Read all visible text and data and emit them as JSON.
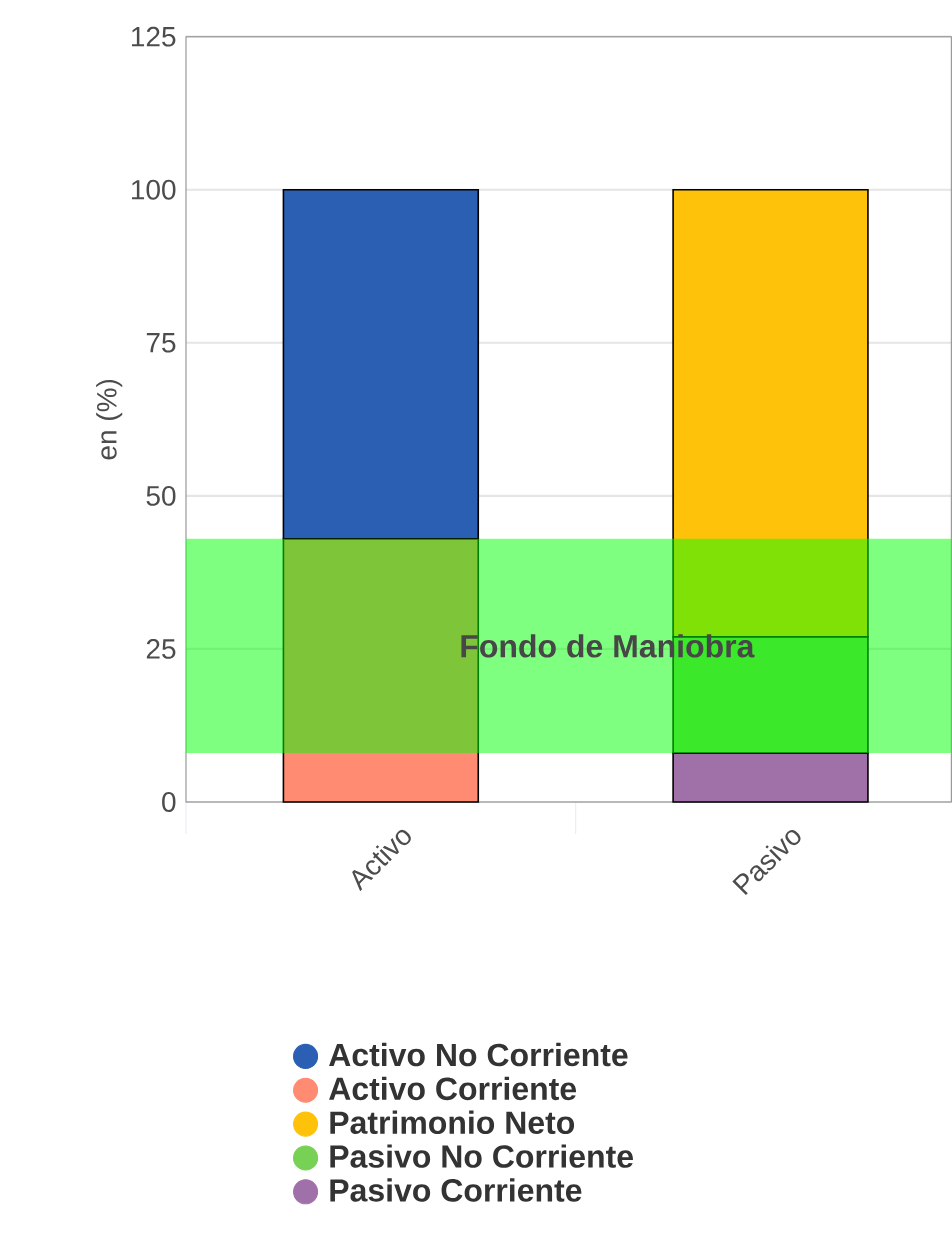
{
  "chart_data": {
    "type": "bar",
    "stacked": true,
    "ylabel": "en (%)",
    "categories": [
      "Activo",
      "Pasivo"
    ],
    "series": [
      {
        "name": "Pasivo Corriente",
        "color": "#a071a8",
        "values": [
          null,
          8
        ]
      },
      {
        "name": "Pasivo No Corriente",
        "color": "#77d155",
        "values": [
          null,
          19
        ]
      },
      {
        "name": "Patrimonio Neto",
        "color": "#ffc20a",
        "values": [
          null,
          73
        ]
      },
      {
        "name": "Activo Corriente",
        "color": "#ff8b73",
        "values": [
          43,
          null
        ]
      },
      {
        "name": "Activo No Corriente",
        "color": "#2b5fb3",
        "values": [
          57,
          null
        ]
      }
    ],
    "bands": [
      {
        "axis": "y",
        "from": 8,
        "to": 43,
        "label": "Fondo de Maniobra",
        "color": "#00ff00"
      }
    ],
    "ylim": [
      0,
      125
    ],
    "yticks": [
      0,
      25,
      50,
      75,
      100,
      125
    ],
    "grid": "y",
    "legend": "bottom",
    "marker": "circle"
  }
}
